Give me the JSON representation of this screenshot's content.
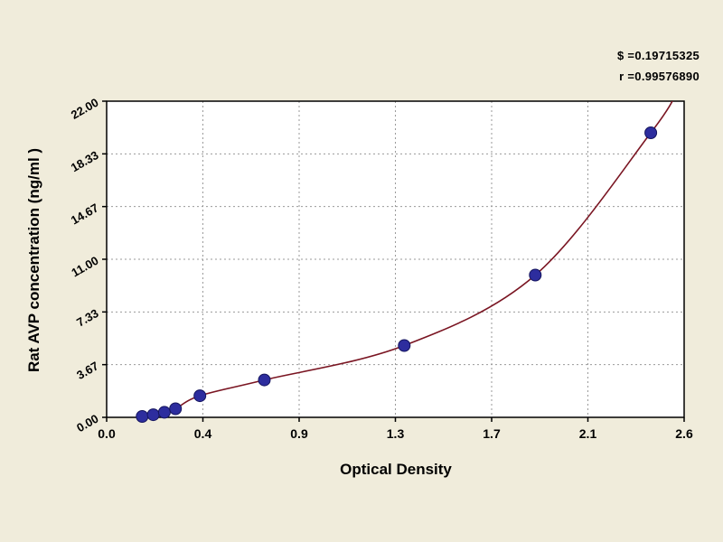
{
  "annotations": {
    "line1": "$ =0.19715325",
    "line2": "r =0.99576890"
  },
  "chart_data": {
    "type": "scatter",
    "title": "",
    "xlabel": "Optical Density",
    "ylabel": "Rat AVP concentration (ng/ml )",
    "xlim": [
      0,
      2.6
    ],
    "ylim": [
      0,
      22
    ],
    "grid": true,
    "legend": "none",
    "x_ticks": {
      "labels": [
        "0.0",
        "0.4",
        "0.9",
        "1.3",
        "1.7",
        "2.1",
        "2.6"
      ]
    },
    "y_ticks": {
      "labels": [
        "0.00",
        "3.67",
        "7.33",
        "11.00",
        "14.67",
        "18.33",
        "22.00"
      ]
    },
    "points": [
      {
        "x": 0.16,
        "y": 0.06
      },
      {
        "x": 0.21,
        "y": 0.18
      },
      {
        "x": 0.26,
        "y": 0.35
      },
      {
        "x": 0.31,
        "y": 0.6
      },
      {
        "x": 0.42,
        "y": 1.5
      },
      {
        "x": 0.71,
        "y": 2.6
      },
      {
        "x": 1.34,
        "y": 5.0
      },
      {
        "x": 1.93,
        "y": 9.9
      },
      {
        "x": 2.45,
        "y": 19.8
      }
    ],
    "curve_end": {
      "x": 2.58,
      "y": 23.0
    },
    "colors": {
      "background": "#f0ecdb",
      "plot_bg": "#ffffff",
      "point": "#2d2d9e",
      "point_stroke": "#15155e",
      "curve": "#7a1522",
      "grid": "#9a9a9a",
      "axis": "#000000"
    }
  }
}
